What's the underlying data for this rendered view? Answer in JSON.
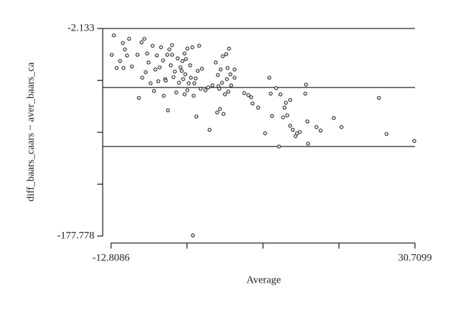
{
  "chart_data": {
    "type": "scatter",
    "xlabel": "Average",
    "ylabel": "diff_baars_caars − aver_baars_ca",
    "xlim": [
      -12.8086,
      30.7099
    ],
    "xticks": [
      -12.8086,
      30.7099
    ],
    "xminor_ticks": [
      -1.929,
      8.951,
      19.83
    ],
    "ylim": [
      -177.778,
      -2.133
    ],
    "yticks": [
      -2.133,
      -177.778
    ],
    "yminor_ticks": [
      -46.044,
      -89.956,
      -133.867
    ],
    "hlines": [
      -2.133,
      -52.06,
      -101.99
    ],
    "color": "#1a1a1a",
    "series": [
      {
        "x": [
          -12.71,
          -12.41,
          -12.01,
          -11.52,
          -11.12,
          -11.02,
          -10.82,
          -10.52,
          -10.22,
          -9.83,
          -9.03,
          -8.83,
          -8.44,
          -8.34,
          -8.04,
          -7.84,
          -7.64,
          -7.44,
          -7.14,
          -6.85,
          -6.65,
          -6.45,
          -6.25,
          -6.05,
          -5.85,
          -5.65,
          -5.36,
          -5.26,
          -5.06,
          -4.96,
          -4.76,
          -4.66,
          -4.46,
          -4.26,
          -4.07,
          -4.07,
          -3.87,
          -3.67,
          -3.47,
          -3.27,
          -3.07,
          -2.87,
          -2.68,
          -2.58,
          -2.48,
          -2.28,
          -2.28,
          -2.18,
          -2.08,
          -1.88,
          -1.88,
          -1.68,
          -1.48,
          -1.38,
          -1.18,
          -1.08,
          -0.98,
          -0.88,
          -0.69,
          -0.59,
          -0.39,
          -0.19,
          0.01,
          0.21,
          0.7,
          1.1,
          1.3,
          1.7,
          2.19,
          2.39,
          2.49,
          2.59,
          2.69,
          2.79,
          2.89,
          3.09,
          3.19,
          3.29,
          3.49,
          3.68,
          3.78,
          3.88,
          3.98,
          4.08,
          4.28,
          4.38,
          4.88,
          4.88,
          6.27,
          6.86,
          7.26,
          7.46,
          8.26,
          9.25,
          9.85,
          10.05,
          10.24,
          10.84,
          11.24,
          11.44,
          11.83,
          12.03,
          12.23,
          12.43,
          12.83,
          12.83,
          13.22,
          13.62,
          13.82,
          14.22,
          15.01,
          15.11,
          15.31,
          15.41,
          16.6,
          17.2,
          19.09,
          20.18,
          25.55,
          26.64,
          30.61
        ],
        "y": [
          -24.4,
          -8.0,
          -35.6,
          -29.7,
          -14.5,
          -35.6,
          -19.8,
          -25.0,
          -10.9,
          -34.4,
          -24.4,
          -60.9,
          -13.9,
          -43.8,
          -10.9,
          -39.1,
          -23.3,
          -30.9,
          -48.5,
          -16.8,
          -55.0,
          -36.8,
          -25.0,
          -46.8,
          -35.0,
          -18.0,
          -29.2,
          -59.1,
          -45.0,
          -46.2,
          -24.4,
          -71.4,
          -19.8,
          -33.3,
          -16.2,
          -24.4,
          -43.3,
          -38.6,
          -56.2,
          -27.4,
          -48.0,
          -35.0,
          -38.0,
          -29.7,
          -45.0,
          -57.9,
          -23.3,
          -40.9,
          -28.0,
          -19.2,
          -54.4,
          -48.5,
          -33.3,
          -43.8,
          -18.0,
          -177.2,
          -59.1,
          -48.5,
          -44.4,
          -76.7,
          -38.0,
          -16.8,
          -53.2,
          -36.2,
          -54.4,
          -52.1,
          -87.9,
          -50.3,
          -30.9,
          -73.2,
          -41.5,
          -50.9,
          -53.2,
          -70.3,
          -36.8,
          -48.0,
          -25.6,
          -74.4,
          -57.9,
          -23.9,
          -45.0,
          -35.6,
          -55.6,
          -19.2,
          -40.9,
          -50.3,
          -36.8,
          -43.8,
          -56.8,
          -58.5,
          -60.3,
          -65.6,
          -69.1,
          -90.8,
          -43.8,
          -57.3,
          -76.1,
          -52.6,
          -102.0,
          -57.9,
          -77.3,
          -69.1,
          -65.0,
          -75.6,
          -62.6,
          -84.4,
          -87.9,
          -93.2,
          -90.8,
          -89.7,
          -57.3,
          -49.7,
          -80.8,
          -99.6,
          -85.5,
          -88.5,
          -77.9,
          -85.5,
          -60.9,
          -91.4,
          -97.3
        ]
      }
    ]
  }
}
